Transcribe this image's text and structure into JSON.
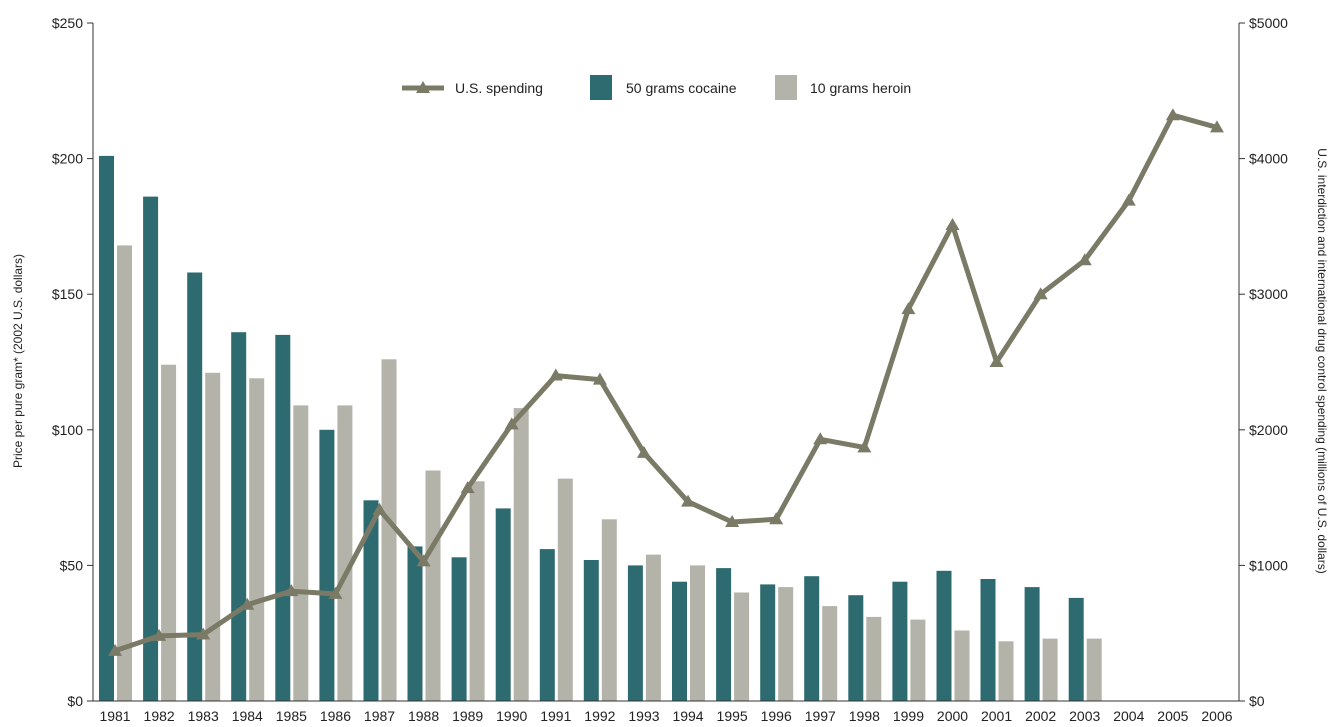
{
  "chart_data": {
    "type": "bar",
    "categories": [
      "1981",
      "1982",
      "1983",
      "1984",
      "1985",
      "1986",
      "1987",
      "1988",
      "1989",
      "1990",
      "1991",
      "1992",
      "1993",
      "1994",
      "1995",
      "1996",
      "1997",
      "1998",
      "1999",
      "2000",
      "2001",
      "2002",
      "2003",
      "2004",
      "2005",
      "2006"
    ],
    "series": [
      {
        "name": "50 grams cocaine",
        "type": "bar",
        "axis": "left",
        "color": "#2e6b70",
        "values": [
          201,
          186,
          158,
          136,
          135,
          100,
          74,
          57,
          53,
          71,
          56,
          52,
          50,
          44,
          49,
          43,
          46,
          39,
          44,
          48,
          45,
          42,
          38,
          null,
          null,
          null
        ]
      },
      {
        "name": "10 grams heroin",
        "type": "bar",
        "axis": "left",
        "color": "#b3b3a9",
        "values": [
          168,
          124,
          121,
          119,
          109,
          109,
          126,
          85,
          81,
          108,
          82,
          67,
          54,
          50,
          40,
          42,
          35,
          31,
          30,
          26,
          22,
          23,
          23,
          null,
          null,
          null
        ]
      },
      {
        "name": "U.S. spending",
        "type": "line",
        "axis": "right",
        "color": "#7a7a66",
        "values": [
          370,
          480,
          490,
          710,
          810,
          790,
          1410,
          1030,
          1570,
          2040,
          2400,
          2370,
          1830,
          1470,
          1320,
          1340,
          1930,
          1870,
          2890,
          3510,
          2500,
          3000,
          3250,
          3690,
          4320,
          4230
        ]
      }
    ],
    "ylabel": "Price per pure gram* (2002 U.S. dollars)",
    "y2label": "U.S. interdiction and international drug control spending (millions of U.S. dollars)",
    "ylim": [
      0,
      250
    ],
    "y2lim": [
      0,
      5000
    ],
    "yticks": [
      "$0",
      "$50",
      "$100",
      "$150",
      "$200",
      "$250"
    ],
    "y2ticks": [
      "$0",
      "$1000",
      "$2000",
      "$3000",
      "$4000",
      "$5000"
    ],
    "grid": false,
    "legend_position": "top-center"
  }
}
